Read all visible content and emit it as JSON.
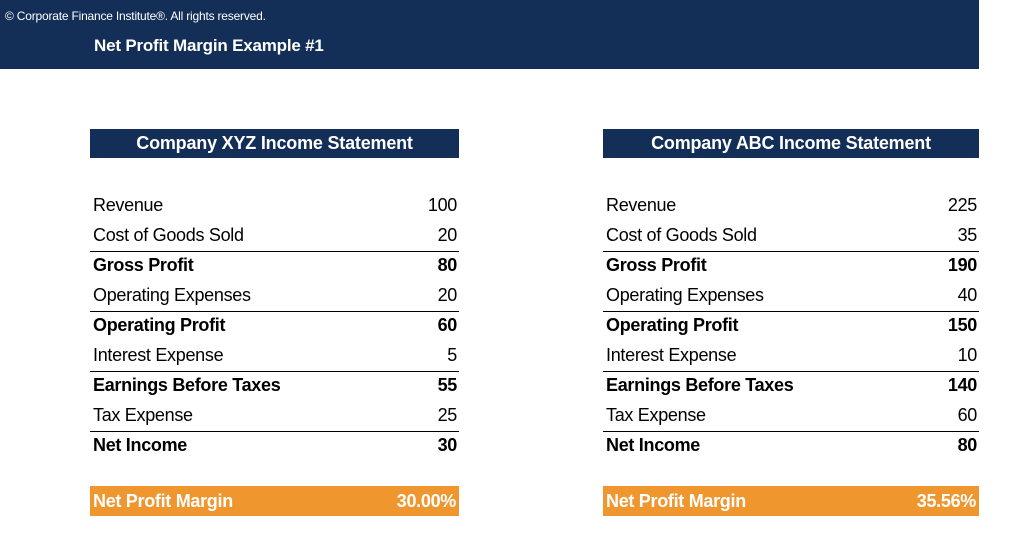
{
  "header": {
    "copyright": "© Corporate Finance Institute®. All rights reserved.",
    "title": "Net Profit Margin Example #1"
  },
  "colors": {
    "navy": "#132e57",
    "orange": "#f0962f"
  },
  "statements": [
    {
      "title": "Company XYZ Income Statement",
      "rows": [
        {
          "label": "Revenue",
          "value": "100"
        },
        {
          "label": "Cost of Goods Sold",
          "value": "20"
        },
        {
          "label": "Gross Profit",
          "value": "80"
        },
        {
          "label": "Operating Expenses",
          "value": "20"
        },
        {
          "label": "Operating Profit",
          "value": "60"
        },
        {
          "label": "Interest Expense",
          "value": "5"
        },
        {
          "label": "Earnings Before Taxes",
          "value": "55"
        },
        {
          "label": "Tax Expense",
          "value": "25"
        },
        {
          "label": "Net Income",
          "value": "30"
        }
      ],
      "margin": {
        "label": "Net Profit Margin",
        "value": "30.00%"
      }
    },
    {
      "title": "Company ABC Income Statement",
      "rows": [
        {
          "label": "Revenue",
          "value": "225"
        },
        {
          "label": "Cost of Goods Sold",
          "value": "35"
        },
        {
          "label": "Gross Profit",
          "value": "190"
        },
        {
          "label": "Operating Expenses",
          "value": "40"
        },
        {
          "label": "Operating Profit",
          "value": "150"
        },
        {
          "label": "Interest Expense",
          "value": "10"
        },
        {
          "label": "Earnings Before Taxes",
          "value": "140"
        },
        {
          "label": "Tax Expense",
          "value": "60"
        },
        {
          "label": "Net Income",
          "value": "80"
        }
      ],
      "margin": {
        "label": "Net Profit Margin",
        "value": "35.56%"
      }
    }
  ]
}
